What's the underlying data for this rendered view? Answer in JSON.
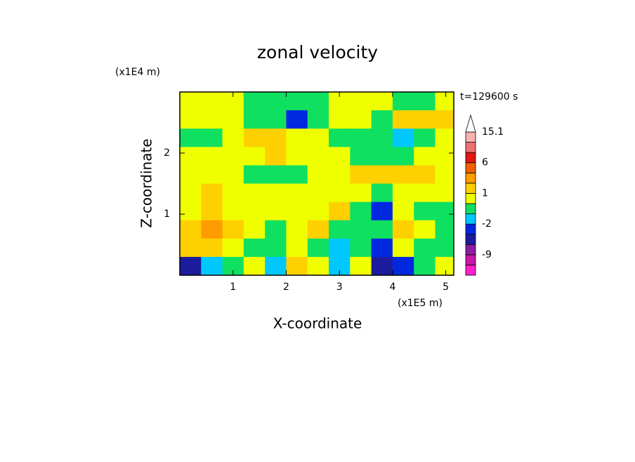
{
  "chart_data": {
    "type": "contour",
    "title": "zonal velocity",
    "annotation": "t=129600 s",
    "xlabel": "X-coordinate",
    "ylabel": "Z-coordinate",
    "x_unit": "(x1E5 m)",
    "y_unit": "(x1E4 m)",
    "xlim": [
      0,
      5.15
    ],
    "ylim": [
      0,
      3.0
    ],
    "xticks": [
      1,
      2,
      3,
      4,
      5
    ],
    "yticks": [
      1,
      2
    ],
    "x": [
      0.2,
      0.6,
      1.0,
      1.4,
      1.8,
      2.2,
      2.6,
      3.0,
      3.4,
      3.8,
      4.2,
      4.6,
      5.0
    ],
    "y": [
      2.85,
      2.55,
      2.25,
      1.95,
      1.65,
      1.35,
      1.05,
      0.75,
      0.45,
      0.15
    ],
    "values": [
      [
        0.5,
        0.5,
        0.5,
        -0.5,
        -0.5,
        -0.5,
        -0.5,
        0.5,
        0.5,
        0.5,
        -0.5,
        -0.5,
        0.5
      ],
      [
        0.5,
        0.5,
        0.5,
        -0.5,
        -0.5,
        -3,
        -0.5,
        0.5,
        0.5,
        -0.5,
        1.5,
        1.5,
        1.5
      ],
      [
        -0.5,
        -0.5,
        0.5,
        1.5,
        1.5,
        0.5,
        0.5,
        -0.5,
        -0.5,
        -0.5,
        -1.5,
        -0.5,
        0.5
      ],
      [
        0.5,
        0.5,
        0.5,
        0.5,
        1.5,
        0.5,
        0.5,
        0.5,
        -0.5,
        -0.5,
        -0.5,
        0.5,
        0.5
      ],
      [
        0.5,
        0.5,
        0.5,
        -0.5,
        -0.5,
        -0.5,
        0.5,
        0.5,
        1.5,
        1.5,
        1.5,
        1.5,
        0.5
      ],
      [
        0.5,
        1.5,
        0.5,
        0.5,
        0.5,
        0.5,
        0.5,
        0.5,
        0.5,
        -0.5,
        0.5,
        0.5,
        0.5
      ],
      [
        0.5,
        1.5,
        0.5,
        0.5,
        0.5,
        0.5,
        0.5,
        1.5,
        -0.5,
        -3,
        0.5,
        -0.5,
        -0.5
      ],
      [
        1.5,
        3,
        1.5,
        0.5,
        -0.5,
        0.5,
        1.5,
        -0.5,
        -0.5,
        -0.5,
        1.5,
        0.5,
        -0.5
      ],
      [
        1.5,
        1.5,
        0.5,
        -0.5,
        -0.5,
        0.5,
        -0.5,
        -1.5,
        -0.5,
        -3,
        0.5,
        -0.5,
        -0.5
      ],
      [
        -6,
        -1.5,
        -0.5,
        0.5,
        -1.5,
        1.5,
        0.5,
        -1.5,
        0.5,
        -6,
        -3,
        -0.5,
        0.5
      ]
    ],
    "colorbar": {
      "levels": [
        -15,
        -12,
        -9,
        -6,
        -4,
        -2,
        -1,
        0,
        1,
        2,
        4,
        6,
        9,
        12,
        15.1
      ],
      "colors": [
        "#ff20c8",
        "#c818a8",
        "#8c1ca0",
        "#1c1c9c",
        "#0028e0",
        "#00c8ff",
        "#10e060",
        "#f0ff00",
        "#ffd000",
        "#ff9c00",
        "#f06000",
        "#e01810",
        "#f07070",
        "#f8b0b0"
      ],
      "over_color": "#ffffff",
      "ticks": [
        15.1,
        6,
        1,
        -2,
        -9
      ]
    }
  }
}
